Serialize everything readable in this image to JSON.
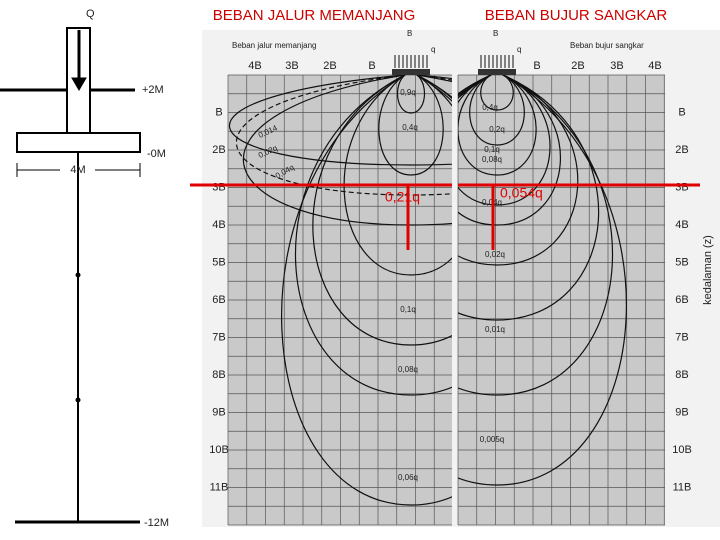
{
  "left_diagram": {
    "load": "Q",
    "levels": [
      "+2M",
      "-0M",
      "-12M"
    ],
    "width": "4M"
  },
  "titles": [
    "BEBAN JALUR MEMANJANG",
    "BEBAN BUJUR SANGKAR"
  ],
  "panels": [
    {
      "caption": "Beban jalur memanjang",
      "width_label": "B",
      "load_label": "q",
      "top_labels": [
        "4B",
        "3B",
        "2B",
        "B"
      ],
      "depth_labels": [
        "B",
        "2B",
        "3B",
        "4B",
        "5B",
        "6B",
        "7B",
        "8B",
        "9B",
        "10B",
        "11B"
      ],
      "contours": [
        "0,9q",
        "0,4q",
        "0,1q",
        "0,08q",
        "0,06q",
        "0,014",
        "0,02q",
        "0,04q"
      ],
      "result": "0,21q"
    },
    {
      "caption": "Beban bujur sangkar",
      "width_label": "B",
      "load_label": "q",
      "top_labels": [
        "B",
        "2B",
        "3B",
        "4B"
      ],
      "depth_labels": [
        "B",
        "2B",
        "3B",
        "4B",
        "5B",
        "6B",
        "7B",
        "8B",
        "9B",
        "10B",
        "11B"
      ],
      "axis_label": "kedalaman (z)",
      "contours": [
        "0,4q",
        "0,2q",
        "0,1q",
        "0,08q",
        "0,04q",
        "0,02q",
        "0,01q",
        "0,005q"
      ],
      "result": "0,054q"
    }
  ]
}
